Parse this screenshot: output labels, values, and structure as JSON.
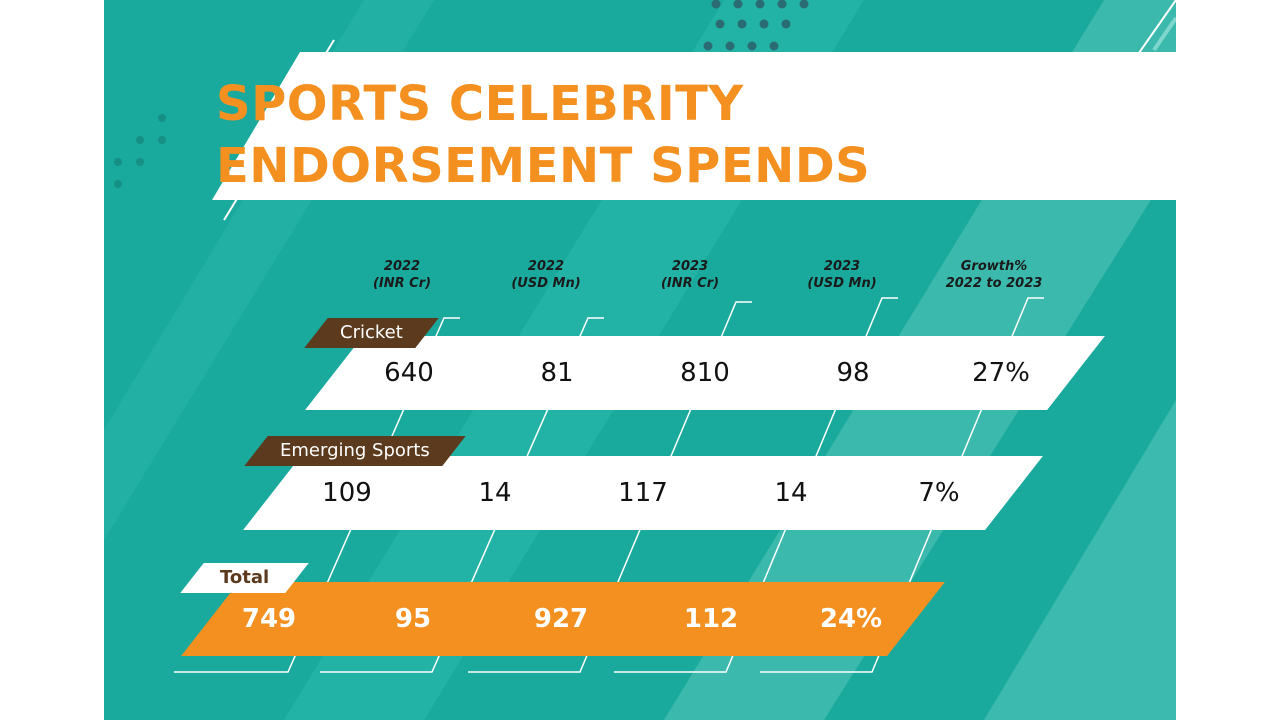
{
  "title": {
    "line1": "SPORTS CELEBRITY",
    "line2": "ENDORSEMENT SPENDS"
  },
  "colors": {
    "background": "#1aa99d",
    "accent": "#f4901f",
    "tag": "#5b3a1e",
    "cell": "#ffffff"
  },
  "chart_data": {
    "type": "table",
    "columns": [
      {
        "line1": "2022",
        "line2": "(INR Cr)"
      },
      {
        "line1": "2022",
        "line2": "(USD Mn)"
      },
      {
        "line1": "2023",
        "line2": "(INR Cr)"
      },
      {
        "line1": "2023",
        "line2": "(USD Mn)"
      },
      {
        "line1": "Growth%",
        "line2": "2022 to 2023"
      }
    ],
    "rows": [
      {
        "label": "Cricket",
        "values": [
          "640",
          "81",
          "810",
          "98",
          "27%"
        ]
      },
      {
        "label": "Emerging Sports",
        "values": [
          "109",
          "14",
          "117",
          "14",
          "7%"
        ]
      },
      {
        "label": "Total",
        "values": [
          "749",
          "95",
          "927",
          "112",
          "24%"
        ]
      }
    ]
  }
}
